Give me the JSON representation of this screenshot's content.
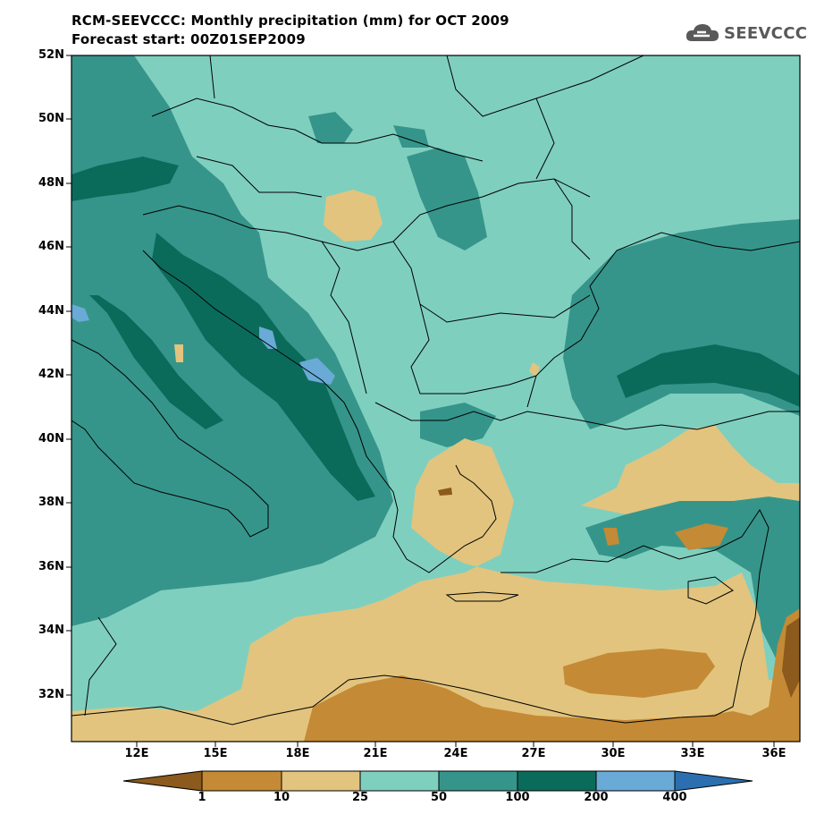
{
  "header": {
    "title_line1": "RCM-SEEVCCC: Monthly precipitation (mm) for OCT 2009",
    "title_line2": "Forecast start: 00Z01SEP2009",
    "logo_text": "SEEVCCC"
  },
  "map": {
    "lat_labels": [
      "52N",
      "50N",
      "48N",
      "46N",
      "44N",
      "42N",
      "40N",
      "38N",
      "36N",
      "34N",
      "32N"
    ],
    "lon_labels": [
      "12E",
      "15E",
      "18E",
      "21E",
      "24E",
      "27E",
      "30E",
      "33E",
      "36E"
    ],
    "colors": {
      "lt1": "#8b5a1c",
      "1_10": "#c48a35",
      "10_25": "#e2c47e",
      "25_50": "#7fcfbf",
      "50_100": "#36958a",
      "100_200": "#0b6b5b",
      "200_400": "#6aaad6",
      "gt400": "#2b6fb0",
      "border": "#000000"
    }
  },
  "colorbar": {
    "labels": [
      "1",
      "10",
      "25",
      "50",
      "100",
      "200",
      "400"
    ]
  }
}
